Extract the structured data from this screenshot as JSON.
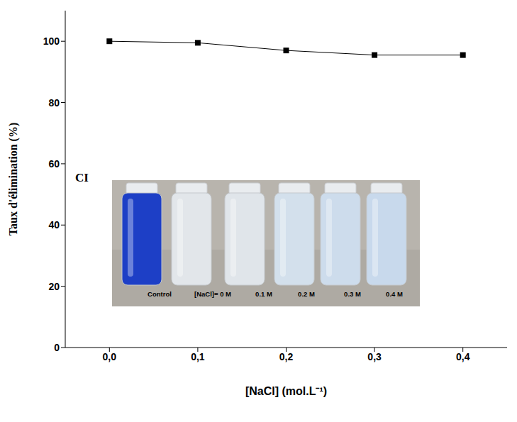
{
  "chart_data": {
    "type": "line",
    "x_label": "[NaCl] (mol.L⁻¹)",
    "y_label": "Taux d'élimination (%)",
    "x": [
      0,
      0.1,
      0.2,
      0.3,
      0.4
    ],
    "values": [
      100,
      99.5,
      97,
      95.5,
      95.5
    ],
    "color": "#000000",
    "marker": "square",
    "line_style": "solid",
    "xlim": [
      -0.05,
      0.45
    ],
    "xticks": [
      {
        "value": 0,
        "label": "0,0"
      },
      {
        "value": 0.1,
        "label": "0,1"
      },
      {
        "value": 0.2,
        "label": "0,2"
      },
      {
        "value": 0.3,
        "label": "0,3"
      },
      {
        "value": 0.4,
        "label": "0,4"
      }
    ],
    "ylim": [
      0,
      110
    ],
    "yticks": [
      0,
      20,
      40,
      60,
      80,
      100
    ],
    "grid": false,
    "inset": {
      "title": "CI",
      "labels": [
        "Control",
        "[NaCl]= 0 M",
        "0.1 M",
        "0.2 M",
        "0.3 M",
        "0.4 M"
      ]
    }
  }
}
